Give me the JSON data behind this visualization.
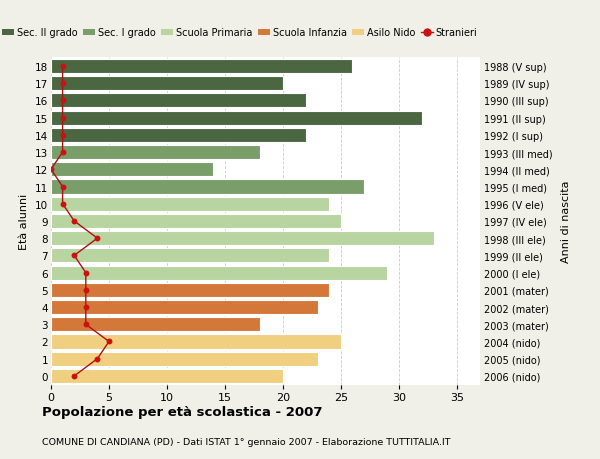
{
  "ages": [
    18,
    17,
    16,
    15,
    14,
    13,
    12,
    11,
    10,
    9,
    8,
    7,
    6,
    5,
    4,
    3,
    2,
    1,
    0
  ],
  "years": [
    "1988 (V sup)",
    "1989 (IV sup)",
    "1990 (III sup)",
    "1991 (II sup)",
    "1992 (I sup)",
    "1993 (III med)",
    "1994 (II med)",
    "1995 (I med)",
    "1996 (V ele)",
    "1997 (IV ele)",
    "1998 (III ele)",
    "1999 (II ele)",
    "2000 (I ele)",
    "2001 (mater)",
    "2002 (mater)",
    "2003 (mater)",
    "2004 (nido)",
    "2005 (nido)",
    "2006 (nido)"
  ],
  "bar_values": [
    26,
    20,
    22,
    32,
    22,
    18,
    14,
    27,
    24,
    25,
    33,
    24,
    29,
    24,
    23,
    18,
    25,
    23,
    20
  ],
  "bar_colors": [
    "#4a6741",
    "#4a6741",
    "#4a6741",
    "#4a6741",
    "#4a6741",
    "#7a9e6a",
    "#7a9e6a",
    "#7a9e6a",
    "#b8d4a0",
    "#b8d4a0",
    "#b8d4a0",
    "#b8d4a0",
    "#b8d4a0",
    "#d4783a",
    "#d4783a",
    "#d4783a",
    "#f0d080",
    "#f0d080",
    "#f0d080"
  ],
  "stranieri_values": [
    1,
    1,
    1,
    1,
    1,
    1,
    0,
    1,
    1,
    2,
    4,
    2,
    3,
    3,
    3,
    3,
    5,
    4,
    2
  ],
  "legend_labels": [
    "Sec. II grado",
    "Sec. I grado",
    "Scuola Primaria",
    "Scuola Infanzia",
    "Asilo Nido",
    "Stranieri"
  ],
  "legend_colors": [
    "#4a6741",
    "#7a9e6a",
    "#b8d4a0",
    "#d4783a",
    "#f0d080",
    "#cc2222"
  ],
  "ylabel_left": "Età alunni",
  "ylabel_right": "Anni di nascita",
  "title": "Popolazione per età scolastica - 2007",
  "subtitle": "COMUNE DI CANDIANA (PD) - Dati ISTAT 1° gennaio 2007 - Elaborazione TUTTITALIA.IT",
  "xlim": [
    0,
    37
  ],
  "background_color": "#ffffff",
  "plot_bg_color": "#ffffff",
  "bar_edge_color": "white",
  "grid_color": "#cccccc",
  "fig_bg_color": "#f0f0e8"
}
